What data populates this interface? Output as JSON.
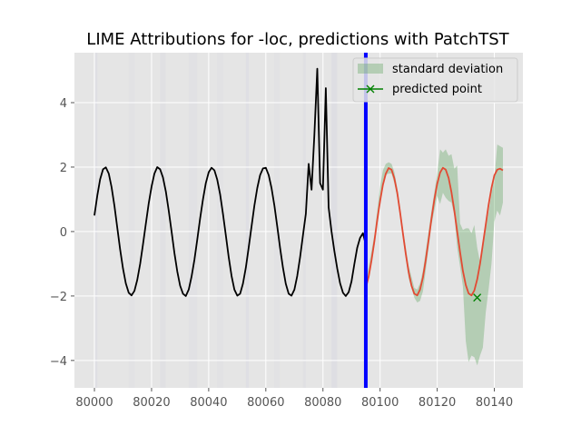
{
  "chart_data": {
    "type": "line",
    "title": "LIME Attributions for -loc, predictions with PatchTST",
    "xlim": [
      79993,
      80150
    ],
    "ylim": [
      -4.85,
      5.55
    ],
    "xticks": [
      80000,
      80020,
      80040,
      80060,
      80080,
      80100,
      80120,
      80140
    ],
    "yticks": [
      -4,
      -2,
      0,
      2,
      4
    ],
    "grid": true,
    "legend_placement": "top-right",
    "colors": {
      "background": "#e5e5e5",
      "grid": "#ffffff",
      "history": "#000000",
      "prediction": "#e24a33",
      "std_band": "#5aa05a",
      "predicted_point": "#008000",
      "divider": "#0000ff",
      "attribution": "#b8b8dc"
    },
    "series": [
      {
        "key": "history",
        "x": [
          80000,
          80001,
          80002,
          80003,
          80004,
          80005,
          80006,
          80007,
          80008,
          80009,
          80010,
          80011,
          80012,
          80013,
          80014,
          80015,
          80016,
          80017,
          80018,
          80019,
          80020,
          80021,
          80022,
          80023,
          80024,
          80025,
          80026,
          80027,
          80028,
          80029,
          80030,
          80031,
          80032,
          80033,
          80034,
          80035,
          80036,
          80037,
          80038,
          80039,
          80040,
          80041,
          80042,
          80043,
          80044,
          80045,
          80046,
          80047,
          80048,
          80049,
          80050,
          80051,
          80052,
          80053,
          80054,
          80055,
          80056,
          80057,
          80058,
          80059,
          80060,
          80061,
          80062,
          80063,
          80064,
          80065,
          80066,
          80067,
          80068,
          80069,
          80070,
          80071,
          80072,
          80073,
          80074,
          80075,
          80076,
          80077,
          80078,
          80079,
          80080,
          80081,
          80082,
          80083,
          80084,
          80085,
          80086,
          80087,
          80088,
          80089,
          80090,
          80091,
          80092,
          80093,
          80094,
          80095
        ],
        "values": [
          0.5,
          1.12,
          1.62,
          1.93,
          1.99,
          1.8,
          1.38,
          0.79,
          0.12,
          -0.55,
          -1.15,
          -1.61,
          -1.9,
          -1.98,
          -1.84,
          -1.5,
          -1.0,
          -0.4,
          0.25,
          0.87,
          1.4,
          1.8,
          2.0,
          1.93,
          1.68,
          1.24,
          0.66,
          0.0,
          -0.66,
          -1.24,
          -1.68,
          -1.93,
          -2.0,
          -1.8,
          -1.4,
          -0.87,
          -0.25,
          0.4,
          1.0,
          1.5,
          1.84,
          1.98,
          1.9,
          1.61,
          1.15,
          0.55,
          -0.12,
          -0.79,
          -1.38,
          -1.8,
          -1.99,
          -1.93,
          -1.62,
          -1.12,
          -0.5,
          0.16,
          0.8,
          1.35,
          1.75,
          1.96,
          1.98,
          1.75,
          1.35,
          0.8,
          0.16,
          -0.5,
          -1.12,
          -1.62,
          -1.93,
          -1.99,
          -1.8,
          -1.38,
          -0.79,
          -0.12,
          0.55,
          2.1,
          1.3,
          3.0,
          5.05,
          1.5,
          1.3,
          4.45,
          0.75,
          0.0,
          -0.6,
          -1.15,
          -1.6,
          -1.9,
          -2.0,
          -1.88,
          -1.55,
          -1.0,
          -0.5,
          -0.2,
          -0.05,
          -0.4
        ]
      },
      {
        "key": "prediction",
        "x": [
          80095,
          80096,
          80097,
          80098,
          80099,
          80100,
          80101,
          80102,
          80103,
          80104,
          80105,
          80106,
          80107,
          80108,
          80109,
          80110,
          80111,
          80112,
          80113,
          80114,
          80115,
          80116,
          80117,
          80118,
          80119,
          80120,
          80121,
          80122,
          80123,
          80124,
          80125,
          80126,
          80127,
          80128,
          80129,
          80130,
          80131,
          80132,
          80133,
          80134,
          80135,
          80136,
          80137,
          80138,
          80139,
          80140,
          80141,
          80142,
          80143
        ],
        "values": [
          -1.75,
          -1.4,
          -0.9,
          -0.3,
          0.35,
          0.95,
          1.45,
          1.8,
          1.97,
          1.92,
          1.65,
          1.2,
          0.6,
          -0.05,
          -0.7,
          -1.25,
          -1.68,
          -1.93,
          -1.98,
          -1.8,
          -1.42,
          -0.88,
          -0.25,
          0.4,
          1.0,
          1.48,
          1.83,
          1.98,
          1.92,
          1.66,
          1.22,
          0.64,
          0.0,
          -0.64,
          -1.22,
          -1.66,
          -1.92,
          -1.98,
          -1.83,
          -1.48,
          -1.0,
          -0.4,
          0.22,
          0.83,
          1.35,
          1.74,
          1.92,
          1.95,
          1.9
        ]
      }
    ],
    "std_band": {
      "name": "standard deviation",
      "x": [
        80095,
        80098,
        80100,
        80101,
        80102,
        80103,
        80104,
        80105,
        80106,
        80107,
        80108,
        80110,
        80112,
        80113,
        80114,
        80115,
        80116,
        80118,
        80120,
        80121,
        80122,
        80123,
        80124,
        80125,
        80126,
        80127,
        80128,
        80129,
        80130,
        80131,
        80132,
        80133,
        80134,
        80135,
        80136,
        80137,
        80138,
        80139,
        80140,
        80141,
        80142,
        80143
      ],
      "upper": [
        -1.6,
        -0.1,
        1.4,
        1.9,
        2.1,
        2.15,
        2.1,
        1.85,
        1.35,
        0.75,
        0.1,
        -1.05,
        -1.75,
        -1.8,
        -1.6,
        -1.2,
        -0.6,
        0.65,
        1.8,
        2.55,
        2.45,
        2.55,
        2.35,
        2.4,
        1.95,
        2.05,
        0.25,
        0.05,
        0.1,
        0.1,
        -0.05,
        0.2,
        -0.5,
        -0.95,
        -0.35,
        0.15,
        0.6,
        1.2,
        1.6,
        2.7,
        2.65,
        2.6
      ],
      "lower": [
        -1.85,
        -0.45,
        0.85,
        1.55,
        1.75,
        1.8,
        1.8,
        1.5,
        1.05,
        0.45,
        -0.2,
        -1.45,
        -2.05,
        -2.2,
        -2.15,
        -1.85,
        -1.2,
        0.2,
        1.1,
        0.85,
        1.2,
        1.05,
        0.95,
        0.9,
        0.5,
        -0.5,
        -1.1,
        -1.7,
        -3.4,
        -4.05,
        -3.85,
        -3.9,
        -4.15,
        -3.85,
        -3.6,
        -2.5,
        -1.8,
        -1.0,
        0.3,
        0.65,
        0.5,
        0.9
      ]
    },
    "predicted_point": {
      "name": "predicted point",
      "x": 80134,
      "y": -2.05
    },
    "divider_x": 80095,
    "attribution_bands": [
      {
        "x0": 80000,
        "x1": 80001,
        "alpha": 0.12
      },
      {
        "x0": 80012,
        "x1": 80014,
        "alpha": 0.06
      },
      {
        "x0": 80023,
        "x1": 80025,
        "alpha": 0.1
      },
      {
        "x0": 80033,
        "x1": 80036,
        "alpha": 0.08
      },
      {
        "x0": 80043,
        "x1": 80045,
        "alpha": 0.06
      },
      {
        "x0": 80053,
        "x1": 80054,
        "alpha": 0.12
      },
      {
        "x0": 80063,
        "x1": 80065,
        "alpha": 0.06
      },
      {
        "x0": 80073,
        "x1": 80074,
        "alpha": 0.1
      },
      {
        "x0": 80083,
        "x1": 80085,
        "alpha": 0.16
      }
    ]
  }
}
